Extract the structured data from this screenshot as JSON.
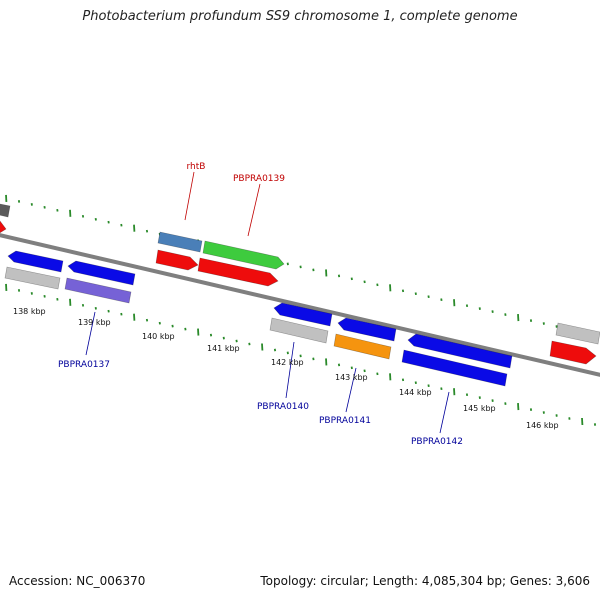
{
  "title": "Photobacterium profundum SS9 chromosome 1, complete genome",
  "footer": {
    "accession": "Accession: NC_006370",
    "summary": "Topology: circular; Length: 4,085,304 bp; Genes: 3,606"
  },
  "colors": {
    "backbone": "#7f7f7f",
    "tick": "#2a8a2a",
    "top_label": "#c00000",
    "bottom_label": "#00009a",
    "blue": "#0a0ae6",
    "gray": "#c0c0c0",
    "red": "#ee0c0c",
    "green": "#3ecb3e",
    "steel": "#4a7fb8",
    "purple": "#7662d6",
    "orange": "#f5940f",
    "dark": "#5a5a5a"
  },
  "scale": {
    "labels": [
      "138 kbp",
      "139 kbp",
      "140 kbp",
      "141 kbp",
      "142 kbp",
      "143 kbp",
      "144 kbp",
      "145 kbp",
      "146 kbp"
    ]
  },
  "gene_labels": {
    "top": [
      "rhtB",
      "PBPRA0139"
    ],
    "bottom": [
      "PBPRA0137",
      "PBPRA0140",
      "PBPRA0141",
      "PBPRA0142"
    ]
  }
}
